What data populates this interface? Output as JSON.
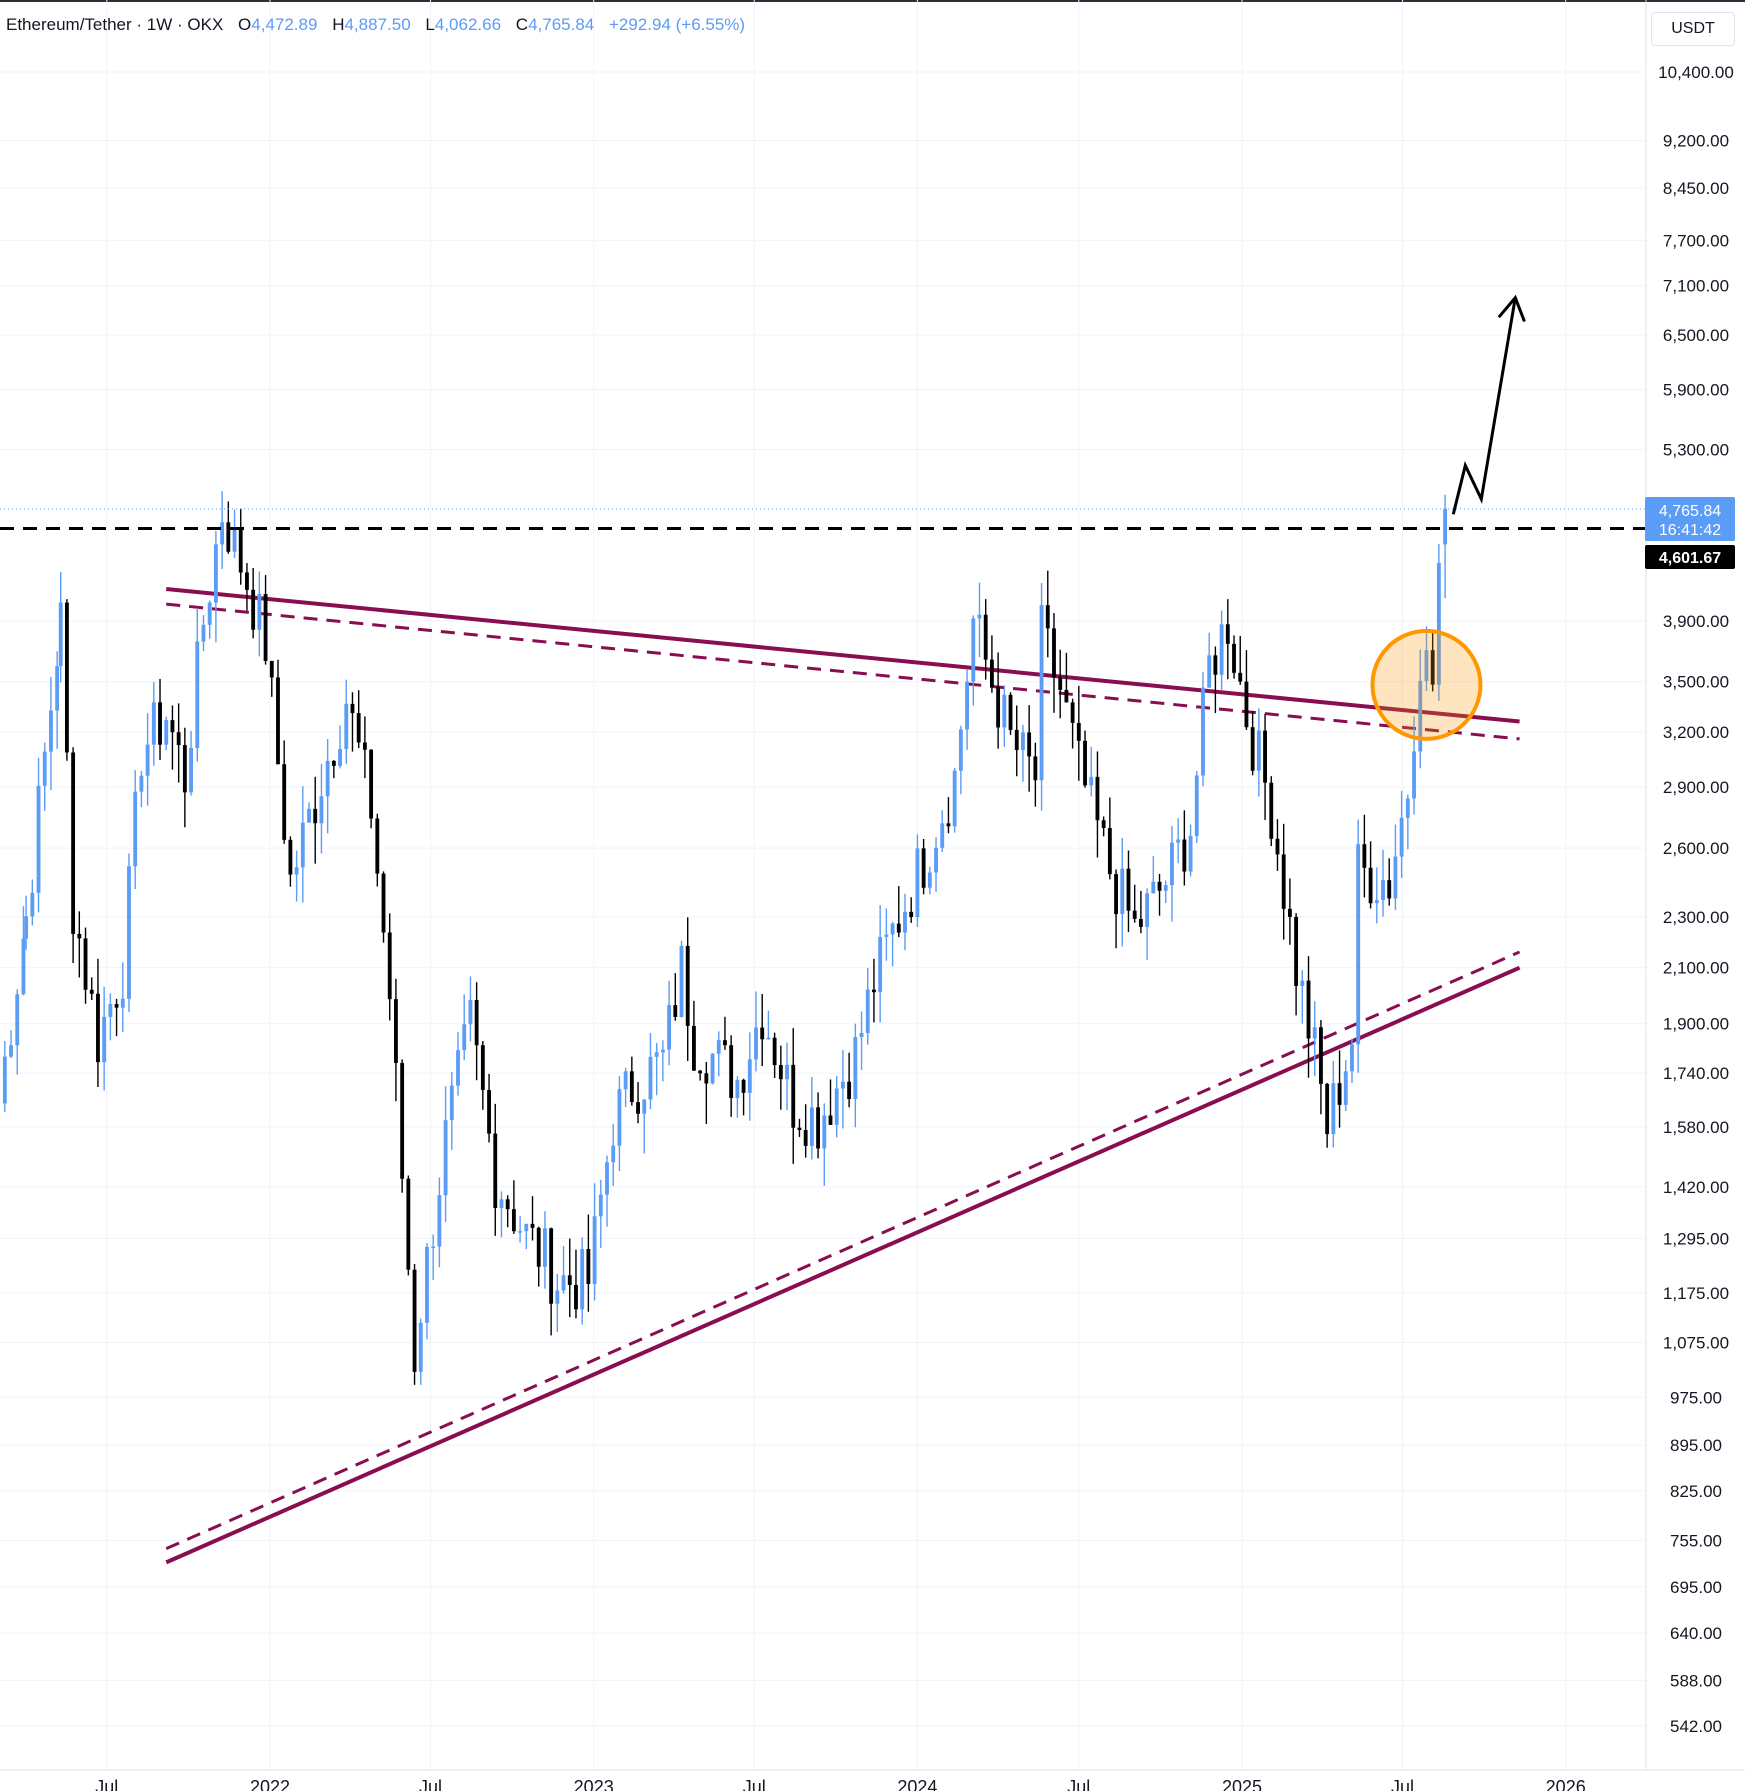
{
  "header": {
    "symbol": "Ethereum/Tether · 1W · OKX",
    "open_key": "O",
    "open": "4,472.89",
    "high_key": "H",
    "high": "4,887.50",
    "low_key": "L",
    "low": "4,062.66",
    "close_key": "C",
    "close": "4,765.84",
    "change": "+292.94 (+6.55%)",
    "currency": "USDT"
  },
  "price_tags": {
    "last_price": "4,765.84",
    "countdown": "16:41:42",
    "level_price": "4,601.67"
  },
  "colors": {
    "up": "#5b9cf6",
    "down": "#000000",
    "trendline": "#880e4f",
    "highlight": "#ff9800",
    "axis_text": "#131722"
  },
  "chart_data": {
    "type": "candlestick",
    "title": "Ethereum/Tether · 1W · OKX",
    "scale": "log",
    "ylim": [
      520,
      12000
    ],
    "y_ticks": [
      "10,400.00",
      "9,200.00",
      "8,450.00",
      "7,700.00",
      "7,100.00",
      "6,500.00",
      "5,900.00",
      "5,300.00",
      "3,900.00",
      "3,500.00",
      "3,200.00",
      "2,900.00",
      "2,600.00",
      "2,300.00",
      "2,100.00",
      "1,900.00",
      "1,740.00",
      "1,580.00",
      "1,420.00",
      "1,295.00",
      "1,175.00",
      "1,075.00",
      "975.00",
      "895.00",
      "825.00",
      "755.00",
      "695.00",
      "640.00",
      "588.00",
      "542.00"
    ],
    "x_ticks": [
      "Jul",
      "2022",
      "Jul",
      "2023",
      "Jul",
      "2024",
      "Jul",
      "2025",
      "Jul",
      "2026"
    ],
    "x_tick_dates": [
      "2021-07-01",
      "2022-01-01",
      "2022-07-01",
      "2023-01-01",
      "2023-07-01",
      "2024-01-01",
      "2024-07-01",
      "2025-01-01",
      "2025-07-01",
      "2026-01-01"
    ],
    "weekly_close": [
      [
        "2021-03-01",
        1650
      ],
      [
        "2021-04-01",
        2300
      ],
      [
        "2021-05-10",
        3900
      ],
      [
        "2021-05-24",
        2350
      ],
      [
        "2021-06-21",
        1850
      ],
      [
        "2021-07-19",
        2100
      ],
      [
        "2021-08-09",
        3100
      ],
      [
        "2021-09-06",
        3300
      ],
      [
        "2021-09-27",
        2950
      ],
      [
        "2021-10-18",
        3900
      ],
      [
        "2021-11-08",
        4750
      ],
      [
        "2021-12-06",
        4200
      ],
      [
        "2021-12-27",
        3750
      ],
      [
        "2022-01-24",
        2450
      ],
      [
        "2022-02-28",
        2950
      ],
      [
        "2022-03-28",
        3400
      ],
      [
        "2022-04-25",
        2800
      ],
      [
        "2022-05-16",
        2000
      ],
      [
        "2022-06-13",
        1050
      ],
      [
        "2022-06-20",
        1150
      ],
      [
        "2022-07-18",
        1550
      ],
      [
        "2022-08-15",
        1900
      ],
      [
        "2022-09-12",
        1450
      ],
      [
        "2022-10-17",
        1300
      ],
      [
        "2022-11-07",
        1250
      ],
      [
        "2022-11-21",
        1200
      ],
      [
        "2022-12-26",
        1200
      ],
      [
        "2023-01-23",
        1600
      ],
      [
        "2023-02-13",
        1700
      ],
      [
        "2023-03-20",
        1780
      ],
      [
        "2023-04-10",
        2100
      ],
      [
        "2023-04-24",
        1850
      ],
      [
        "2023-06-12",
        1720
      ],
      [
        "2023-07-10",
        1950
      ],
      [
        "2023-08-14",
        1650
      ],
      [
        "2023-09-11",
        1600
      ],
      [
        "2023-10-23",
        1800
      ],
      [
        "2023-11-13",
        2050
      ],
      [
        "2023-12-11",
        2300
      ],
      [
        "2024-01-08",
        2550
      ],
      [
        "2024-02-12",
        2950
      ],
      [
        "2024-03-04",
        3900
      ],
      [
        "2024-03-25",
        3500
      ],
      [
        "2024-04-15",
        3150
      ],
      [
        "2024-05-13",
        2950
      ],
      [
        "2024-05-20",
        3800
      ],
      [
        "2024-06-10",
        3450
      ],
      [
        "2024-07-01",
        3000
      ],
      [
        "2024-08-05",
        2500
      ],
      [
        "2024-09-02",
        2250
      ],
      [
        "2024-10-07",
        2450
      ],
      [
        "2024-11-04",
        2700
      ],
      [
        "2024-11-25",
        3600
      ],
      [
        "2024-12-16",
        3900
      ],
      [
        "2025-01-06",
        3300
      ],
      [
        "2025-02-03",
        2800
      ],
      [
        "2025-03-03",
        2100
      ],
      [
        "2025-03-24",
        1800
      ],
      [
        "2025-04-07",
        1580
      ],
      [
        "2025-05-05",
        1850
      ],
      [
        "2025-05-12",
        2500
      ],
      [
        "2025-06-16",
        2450
      ],
      [
        "2025-07-07",
        2900
      ],
      [
        "2025-07-21",
        3700
      ],
      [
        "2025-08-04",
        3500
      ],
      [
        "2025-08-11",
        4300
      ],
      [
        "2025-08-18",
        4765.84
      ]
    ],
    "current": {
      "open": 4472.89,
      "high": 4887.5,
      "low": 4062.66,
      "close": 4765.84
    },
    "horizontal_level": 4601.67,
    "trendlines": [
      {
        "style": "solid",
        "from": [
          "2021-09-06",
          4130
        ],
        "to": [
          "2025-11-10",
          3260
        ]
      },
      {
        "style": "dashed",
        "from": [
          "2021-09-06",
          4020
        ],
        "to": [
          "2025-11-10",
          3160
        ]
      },
      {
        "style": "solid",
        "from": [
          "2021-09-06",
          726
        ],
        "to": [
          "2025-11-10",
          2100
        ]
      },
      {
        "style": "dashed",
        "from": [
          "2021-09-06",
          744
        ],
        "to": [
          "2025-11-10",
          2160
        ]
      }
    ],
    "annotations": [
      "breakout circle around 2025-07 near 3,500",
      "zig-zag arrow projecting toward ~7,000"
    ],
    "grid": true
  }
}
